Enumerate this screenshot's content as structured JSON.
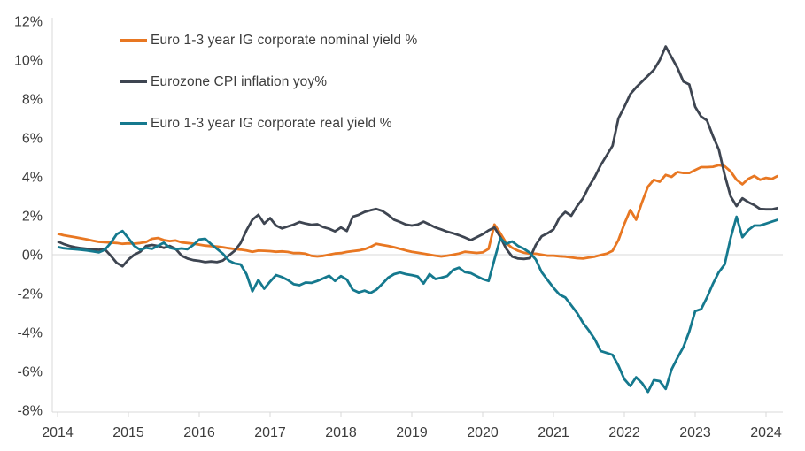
{
  "chart_data": {
    "type": "line",
    "title": "",
    "x_axis": {
      "start": "2014-01",
      "end": "2024-03",
      "interval": "monthly",
      "tick_labels": [
        "2014",
        "2015",
        "2016",
        "2017",
        "2018",
        "2019",
        "2020",
        "2021",
        "2022",
        "2023",
        "2024"
      ]
    },
    "y_axis": {
      "min": -8,
      "max": 12,
      "step": 2,
      "tick_labels": [
        "12%",
        "10%",
        "8%",
        "6%",
        "4%",
        "2%",
        "0%",
        "-2%",
        "-4%",
        "-6%",
        "-8%"
      ],
      "zero_gridline": true,
      "grid": "zero-line-only"
    },
    "legend_position": "top-left-inside",
    "colors": {
      "nominal_yield": "#e87722",
      "cpi_inflation": "#3e4551",
      "real_yield": "#15798e",
      "axis": "#d9d9d9",
      "label_text": "#3c3c3c"
    },
    "series": [
      {
        "name": "Euro 1-3 year IG corporate nominal yield %",
        "color": "#e87722",
        "values": [
          1.08,
          1.0,
          0.95,
          0.9,
          0.84,
          0.78,
          0.72,
          0.66,
          0.64,
          0.62,
          0.6,
          0.56,
          0.58,
          0.57,
          0.6,
          0.65,
          0.82,
          0.86,
          0.75,
          0.7,
          0.73,
          0.63,
          0.6,
          0.57,
          0.52,
          0.47,
          0.44,
          0.42,
          0.38,
          0.33,
          0.29,
          0.26,
          0.22,
          0.15,
          0.21,
          0.2,
          0.18,
          0.15,
          0.17,
          0.14,
          0.08,
          0.08,
          0.05,
          -0.06,
          -0.09,
          -0.06,
          0.0,
          0.06,
          0.08,
          0.14,
          0.18,
          0.22,
          0.28,
          0.4,
          0.56,
          0.5,
          0.45,
          0.38,
          0.3,
          0.22,
          0.15,
          0.1,
          0.05,
          0.0,
          -0.05,
          -0.09,
          -0.05,
          0.0,
          0.06,
          0.15,
          0.12,
          0.09,
          0.12,
          0.3,
          1.55,
          1.1,
          0.6,
          0.35,
          0.2,
          0.1,
          0.05,
          0.05,
          0.0,
          -0.05,
          -0.05,
          -0.08,
          -0.1,
          -0.14,
          -0.18,
          -0.2,
          -0.15,
          -0.1,
          -0.02,
          0.05,
          0.2,
          0.75,
          1.58,
          2.3,
          1.8,
          2.7,
          3.5,
          3.85,
          3.75,
          4.1,
          4.0,
          4.25,
          4.2,
          4.2,
          4.35,
          4.5,
          4.5,
          4.52,
          4.6,
          4.55,
          4.28,
          3.85,
          3.62,
          3.9,
          4.05,
          3.85,
          3.95,
          3.9,
          4.05
        ]
      },
      {
        "name": "Eurozone CPI inflation yoy%",
        "color": "#3e4551",
        "values": [
          0.68,
          0.55,
          0.45,
          0.38,
          0.33,
          0.3,
          0.27,
          0.25,
          0.28,
          -0.05,
          -0.42,
          -0.6,
          -0.25,
          0.0,
          0.15,
          0.45,
          0.5,
          0.45,
          0.35,
          0.45,
          0.3,
          -0.05,
          -0.2,
          -0.28,
          -0.32,
          -0.38,
          -0.35,
          -0.38,
          -0.3,
          -0.05,
          0.2,
          0.6,
          1.25,
          1.8,
          2.05,
          1.6,
          1.88,
          1.5,
          1.35,
          1.45,
          1.55,
          1.68,
          1.6,
          1.54,
          1.57,
          1.42,
          1.33,
          1.2,
          1.4,
          1.22,
          1.95,
          2.05,
          2.2,
          2.28,
          2.35,
          2.25,
          2.05,
          1.8,
          1.68,
          1.55,
          1.5,
          1.55,
          1.7,
          1.55,
          1.4,
          1.3,
          1.18,
          1.1,
          1.0,
          0.88,
          0.75,
          0.9,
          1.05,
          1.25,
          1.4,
          0.9,
          0.3,
          -0.1,
          -0.2,
          -0.22,
          -0.18,
          0.5,
          0.95,
          1.1,
          1.3,
          1.9,
          2.2,
          2.0,
          2.5,
          2.9,
          3.5,
          4.0,
          4.6,
          5.1,
          5.6,
          7.0,
          7.6,
          8.25,
          8.6,
          8.9,
          9.2,
          9.5,
          10.0,
          10.7,
          10.15,
          9.6,
          8.9,
          8.75,
          7.6,
          7.1,
          6.9,
          6.1,
          5.4,
          4.1,
          3.0,
          2.5,
          2.9,
          2.7,
          2.55,
          2.35,
          2.33,
          2.33,
          2.4
        ]
      },
      {
        "name": "Euro 1-3 year IG corporate real yield %",
        "color": "#15798e",
        "values": [
          0.4,
          0.33,
          0.3,
          0.28,
          0.25,
          0.22,
          0.17,
          0.12,
          0.25,
          0.6,
          1.05,
          1.22,
          0.85,
          0.45,
          0.25,
          0.35,
          0.3,
          0.45,
          0.62,
          0.35,
          0.28,
          0.32,
          0.28,
          0.5,
          0.78,
          0.82,
          0.55,
          0.3,
          0.05,
          -0.3,
          -0.45,
          -0.5,
          -1.0,
          -1.88,
          -1.3,
          -1.75,
          -1.38,
          -1.05,
          -1.15,
          -1.3,
          -1.52,
          -1.57,
          -1.43,
          -1.45,
          -1.35,
          -1.22,
          -1.08,
          -1.35,
          -1.1,
          -1.28,
          -1.8,
          -1.94,
          -1.85,
          -1.97,
          -1.8,
          -1.5,
          -1.18,
          -1.0,
          -0.92,
          -1.0,
          -1.05,
          -1.12,
          -1.48,
          -1.0,
          -1.25,
          -1.18,
          -1.1,
          -0.78,
          -0.67,
          -0.9,
          -0.95,
          -1.1,
          -1.25,
          -1.35,
          -0.25,
          0.85,
          0.55,
          0.68,
          0.45,
          0.3,
          0.1,
          -0.25,
          -0.9,
          -1.3,
          -1.7,
          -2.05,
          -2.2,
          -2.6,
          -3.0,
          -3.5,
          -3.9,
          -4.35,
          -4.95,
          -5.05,
          -5.15,
          -5.7,
          -6.4,
          -6.75,
          -6.3,
          -6.6,
          -7.05,
          -6.45,
          -6.5,
          -6.9,
          -5.9,
          -5.3,
          -4.75,
          -3.95,
          -2.9,
          -2.8,
          -2.2,
          -1.5,
          -0.9,
          -0.5,
          0.85,
          1.95,
          0.9,
          1.27,
          1.5,
          1.5,
          1.6,
          1.7,
          1.8
        ]
      }
    ]
  }
}
